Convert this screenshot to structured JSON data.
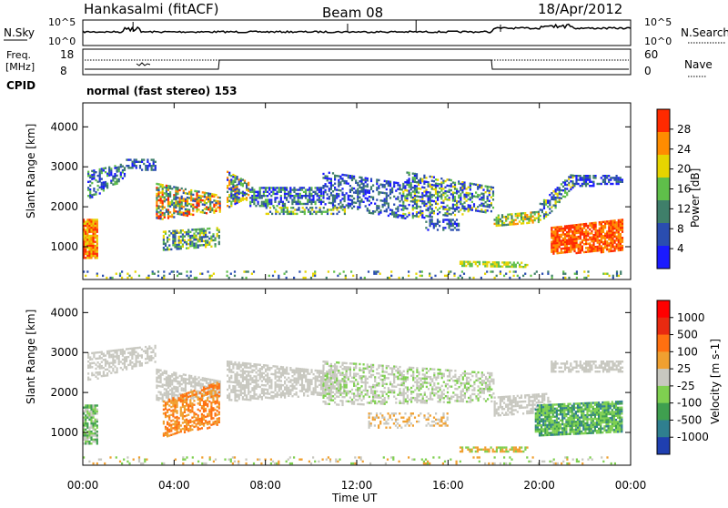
{
  "header": {
    "station": "Hankasalmi (fitACF)",
    "beam": "Beam 08",
    "date": "18/Apr/2012"
  },
  "top_panels": {
    "nsky_label": "N.Sky",
    "nsearch_label": "N.Search",
    "power_ticks": [
      "10^5",
      "10^0"
    ],
    "freq_label": "Freq.",
    "freq_unit": "[MHz]",
    "freq_ticks": [
      "18",
      "8"
    ],
    "nave_label": "Nave",
    "nave_ticks": [
      "60",
      "0"
    ],
    "cpid_label": "CPID",
    "cpid_text": "normal (fast stereo) 153"
  },
  "chart_data": [
    {
      "type": "heatmap",
      "title": "",
      "xlabel": "",
      "ylabel": "Slant Range [km]",
      "x_ticks": [
        "00:00",
        "04:00",
        "08:00",
        "12:00",
        "16:00",
        "20:00",
        "00:00"
      ],
      "x_range_hours": [
        0,
        24
      ],
      "ylim": [
        180,
        4600
      ],
      "y_ticks": [
        1000,
        2000,
        3000,
        4000
      ],
      "colorbar": {
        "label": "Power [dB]",
        "ticks": [
          4,
          8,
          12,
          16,
          20,
          24,
          28
        ],
        "colors": [
          "#1a1aff",
          "#2a4db0",
          "#3f7f6a",
          "#5fbf4a",
          "#e6d400",
          "#ff8c00",
          "#ff2a00"
        ]
      }
    },
    {
      "type": "heatmap",
      "title": "",
      "xlabel": "Time UT",
      "ylabel": "Slant Range [km]",
      "x_ticks": [
        "00:00",
        "04:00",
        "08:00",
        "12:00",
        "16:00",
        "20:00",
        "00:00"
      ],
      "x_range_hours": [
        0,
        24
      ],
      "ylim": [
        180,
        4600
      ],
      "y_ticks": [
        1000,
        2000,
        3000,
        4000
      ],
      "colorbar": {
        "label": "Velocity [m s-1]",
        "ticks": [
          "1000",
          "500",
          "100",
          "25",
          "-25",
          "-100",
          "-500",
          "-1000"
        ],
        "colors": [
          "#1f3fb0",
          "#2f7f8f",
          "#3f9f4f",
          "#7fd050",
          "#c8c8c0",
          "#f0a030",
          "#ff7010",
          "#e82a10",
          "#ff0000"
        ]
      }
    }
  ]
}
